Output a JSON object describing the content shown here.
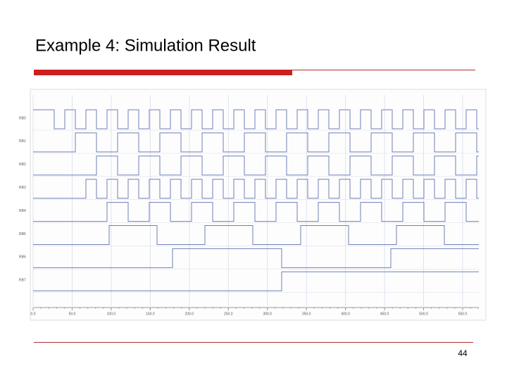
{
  "slide": {
    "title": "Example 4: Simulation Result",
    "page_number": "44"
  },
  "waveform": {
    "signals": [
      "RB0",
      "RB1",
      "RB2",
      "RB3",
      "RB4",
      "RB5",
      "RB6",
      "RB7"
    ],
    "time_labels": [
      "0.0",
      "50.0",
      "100.0",
      "150.0",
      "200.0",
      "250.0",
      "300.0",
      "350.0",
      "400.0",
      "450.0",
      "500.0",
      "550.0"
    ]
  }
}
